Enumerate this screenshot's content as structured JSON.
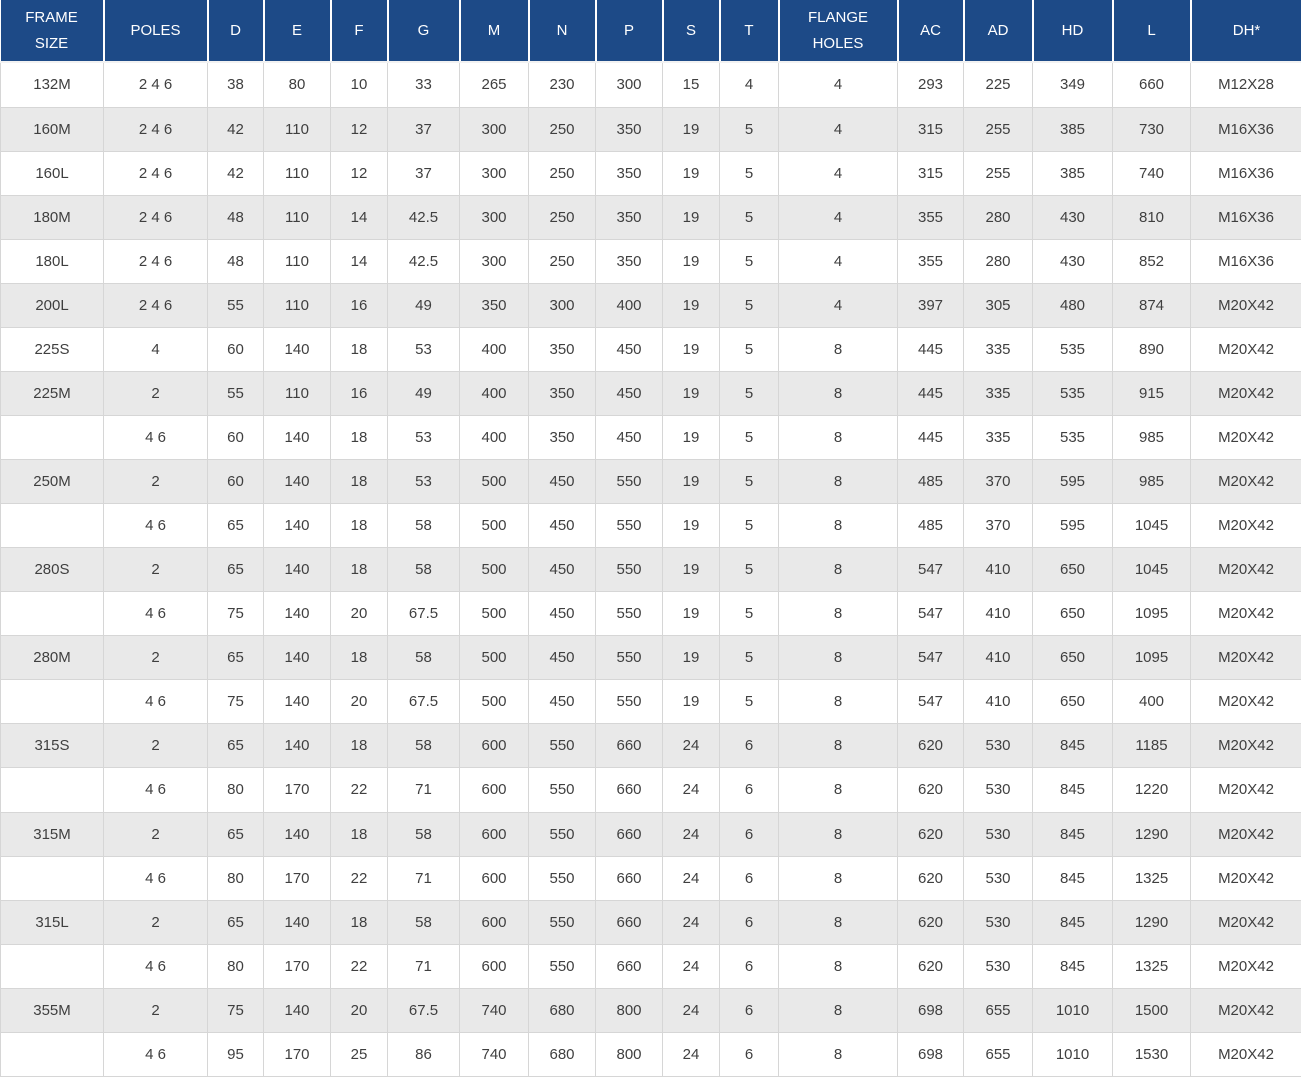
{
  "colors": {
    "header_bg": "#1d4a87",
    "header_text": "#ffffff",
    "row_bg": "#ffffff",
    "row_alt_bg": "#e9e9e9",
    "border": "#d6d6d6",
    "cell_text": "#3f3f3f"
  },
  "chart_data": {
    "type": "table",
    "title": "",
    "headers": [
      "FRAME SIZE",
      "POLES",
      "D",
      "E",
      "F",
      "G",
      "M",
      "N",
      "P",
      "S",
      "T",
      "FLANGE HOLES",
      "AC",
      "AD",
      "HD",
      "L",
      "DH*"
    ],
    "rows": [
      [
        "132M",
        "2 4 6",
        "38",
        "80",
        "10",
        "33",
        "265",
        "230",
        "300",
        "15",
        "4",
        "4",
        "293",
        "225",
        "349",
        "660",
        "M12X28"
      ],
      [
        "160M",
        "2 4 6",
        "42",
        "110",
        "12",
        "37",
        "300",
        "250",
        "350",
        "19",
        "5",
        "4",
        "315",
        "255",
        "385",
        "730",
        "M16X36"
      ],
      [
        "160L",
        "2 4 6",
        "42",
        "110",
        "12",
        "37",
        "300",
        "250",
        "350",
        "19",
        "5",
        "4",
        "315",
        "255",
        "385",
        "740",
        "M16X36"
      ],
      [
        "180M",
        "2 4 6",
        "48",
        "110",
        "14",
        "42.5",
        "300",
        "250",
        "350",
        "19",
        "5",
        "4",
        "355",
        "280",
        "430",
        "810",
        "M16X36"
      ],
      [
        "180L",
        "2 4 6",
        "48",
        "110",
        "14",
        "42.5",
        "300",
        "250",
        "350",
        "19",
        "5",
        "4",
        "355",
        "280",
        "430",
        "852",
        "M16X36"
      ],
      [
        "200L",
        "2 4 6",
        "55",
        "110",
        "16",
        "49",
        "350",
        "300",
        "400",
        "19",
        "5",
        "4",
        "397",
        "305",
        "480",
        "874",
        "M20X42"
      ],
      [
        "225S",
        "4",
        "60",
        "140",
        "18",
        "53",
        "400",
        "350",
        "450",
        "19",
        "5",
        "8",
        "445",
        "335",
        "535",
        "890",
        "M20X42"
      ],
      [
        "225M",
        "2",
        "55",
        "110",
        "16",
        "49",
        "400",
        "350",
        "450",
        "19",
        "5",
        "8",
        "445",
        "335",
        "535",
        "915",
        "M20X42"
      ],
      [
        "",
        "4 6",
        "60",
        "140",
        "18",
        "53",
        "400",
        "350",
        "450",
        "19",
        "5",
        "8",
        "445",
        "335",
        "535",
        "985",
        "M20X42"
      ],
      [
        "250M",
        "2",
        "60",
        "140",
        "18",
        "53",
        "500",
        "450",
        "550",
        "19",
        "5",
        "8",
        "485",
        "370",
        "595",
        "985",
        "M20X42"
      ],
      [
        "",
        "4 6",
        "65",
        "140",
        "18",
        "58",
        "500",
        "450",
        "550",
        "19",
        "5",
        "8",
        "485",
        "370",
        "595",
        "1045",
        "M20X42"
      ],
      [
        "280S",
        "2",
        "65",
        "140",
        "18",
        "58",
        "500",
        "450",
        "550",
        "19",
        "5",
        "8",
        "547",
        "410",
        "650",
        "1045",
        "M20X42"
      ],
      [
        "",
        "4 6",
        "75",
        "140",
        "20",
        "67.5",
        "500",
        "450",
        "550",
        "19",
        "5",
        "8",
        "547",
        "410",
        "650",
        "1095",
        "M20X42"
      ],
      [
        "280M",
        "2",
        "65",
        "140",
        "18",
        "58",
        "500",
        "450",
        "550",
        "19",
        "5",
        "8",
        "547",
        "410",
        "650",
        "1095",
        "M20X42"
      ],
      [
        "",
        "4 6",
        "75",
        "140",
        "20",
        "67.5",
        "500",
        "450",
        "550",
        "19",
        "5",
        "8",
        "547",
        "410",
        "650",
        "400",
        "M20X42"
      ],
      [
        "315S",
        "2",
        "65",
        "140",
        "18",
        "58",
        "600",
        "550",
        "660",
        "24",
        "6",
        "8",
        "620",
        "530",
        "845",
        "1185",
        "M20X42"
      ],
      [
        "",
        "4 6",
        "80",
        "170",
        "22",
        "71",
        "600",
        "550",
        "660",
        "24",
        "6",
        "8",
        "620",
        "530",
        "845",
        "1220",
        "M20X42"
      ],
      [
        "315M",
        "2",
        "65",
        "140",
        "18",
        "58",
        "600",
        "550",
        "660",
        "24",
        "6",
        "8",
        "620",
        "530",
        "845",
        "1290",
        "M20X42"
      ],
      [
        "",
        "4 6",
        "80",
        "170",
        "22",
        "71",
        "600",
        "550",
        "660",
        "24",
        "6",
        "8",
        "620",
        "530",
        "845",
        "1325",
        "M20X42"
      ],
      [
        "315L",
        "2",
        "65",
        "140",
        "18",
        "58",
        "600",
        "550",
        "660",
        "24",
        "6",
        "8",
        "620",
        "530",
        "845",
        "1290",
        "M20X42"
      ],
      [
        "",
        "4 6",
        "80",
        "170",
        "22",
        "71",
        "600",
        "550",
        "660",
        "24",
        "6",
        "8",
        "620",
        "530",
        "845",
        "1325",
        "M20X42"
      ],
      [
        "355M",
        "2",
        "75",
        "140",
        "20",
        "67.5",
        "740",
        "680",
        "800",
        "24",
        "6",
        "8",
        "698",
        "655",
        "1010",
        "1500",
        "M20X42"
      ],
      [
        "",
        "4 6",
        "95",
        "170",
        "25",
        "86",
        "740",
        "680",
        "800",
        "24",
        "6",
        "8",
        "698",
        "655",
        "1010",
        "1530",
        "M20X42"
      ]
    ]
  }
}
